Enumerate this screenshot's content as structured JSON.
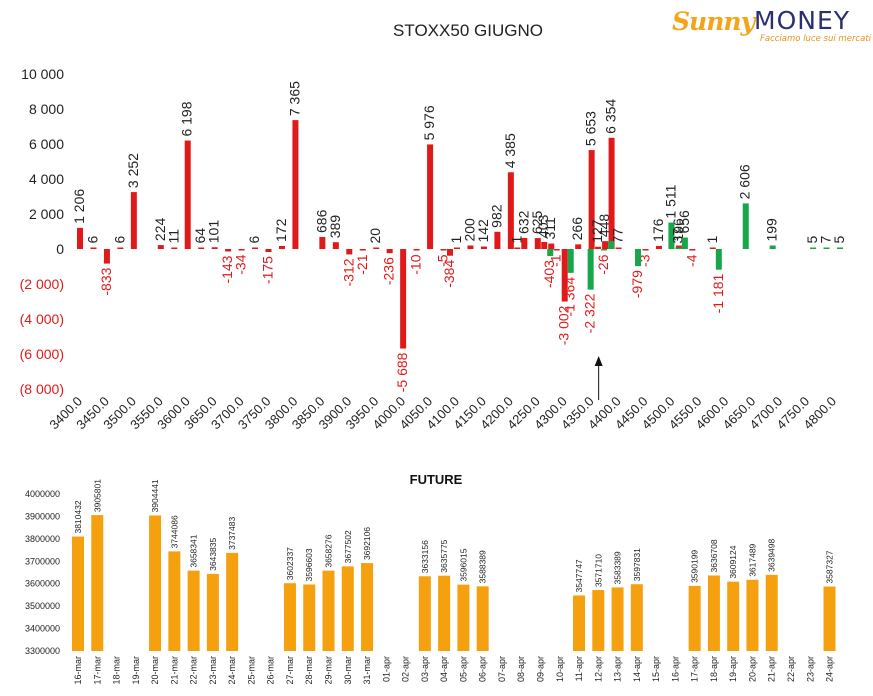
{
  "logo": {
    "sunny": "Sunny",
    "money": "MONEY",
    "tagline": "Facciamo luce sui mercati"
  },
  "chart_data": [
    {
      "type": "bar",
      "title": "STOXX50 GIUGNO",
      "ylim": [
        -8000,
        10000
      ],
      "yticks": [
        "10 000",
        "8 000",
        "6 000",
        "4 000",
        "2 000",
        "0",
        "(2 000)",
        "(4 000)",
        "(6 000)",
        "(8 000)"
      ],
      "categories": [
        "3400.0",
        "3450.0",
        "3500.0",
        "3550.0",
        "3600.0",
        "3650.0",
        "3700.0",
        "3750.0",
        "3800.0",
        "3850.0",
        "3900.0",
        "3950.0",
        "4000.0",
        "4050.0",
        "4100.0",
        "4150.0",
        "4200.0",
        "4250.0",
        "4300.0",
        "4350.0",
        "4400.0",
        "4450.0",
        "4500.0",
        "4550.0",
        "4600.0",
        "4650.0",
        "4700.0",
        "4750.0",
        "4800.0"
      ],
      "red_bars": [
        {
          "x": 3400,
          "value": 1206,
          "label": "1 206"
        },
        {
          "x": 3425,
          "value": 6,
          "label": "6"
        },
        {
          "x": 3450,
          "value": -833,
          "label": "-833"
        },
        {
          "x": 3475,
          "value": 6,
          "label": "6"
        },
        {
          "x": 3500,
          "value": 3252,
          "label": "3 252"
        },
        {
          "x": 3550,
          "value": 224,
          "label": "224"
        },
        {
          "x": 3575,
          "value": 11,
          "label": "11"
        },
        {
          "x": 3600,
          "value": 6198,
          "label": "6 198"
        },
        {
          "x": 3625,
          "value": 64,
          "label": "64"
        },
        {
          "x": 3650,
          "value": 101,
          "label": "101"
        },
        {
          "x": 3675,
          "value": -143,
          "label": "-143"
        },
        {
          "x": 3700,
          "value": -34,
          "label": "-34"
        },
        {
          "x": 3725,
          "value": 6,
          "label": "6"
        },
        {
          "x": 3750,
          "value": -175,
          "label": "-175"
        },
        {
          "x": 3775,
          "value": 172,
          "label": "172"
        },
        {
          "x": 3800,
          "value": 7365,
          "label": "7 365"
        },
        {
          "x": 3850,
          "value": 686,
          "label": "686"
        },
        {
          "x": 3875,
          "value": 389,
          "label": "389"
        },
        {
          "x": 3900,
          "value": -312,
          "label": "-312"
        },
        {
          "x": 3925,
          "value": -21,
          "label": "-21"
        },
        {
          "x": 3950,
          "value": 20,
          "label": "20"
        },
        {
          "x": 3975,
          "value": -236,
          "label": "-236"
        },
        {
          "x": 4000,
          "value": -5688,
          "label": "-5 688"
        },
        {
          "x": 4025,
          "value": -10,
          "label": "-10"
        },
        {
          "x": 4050,
          "value": 5976,
          "label": "5 976"
        },
        {
          "x": 4075,
          "value": -5,
          "label": "-5"
        },
        {
          "x": 4087,
          "value": -384,
          "label": "-384"
        },
        {
          "x": 4100,
          "value": 1,
          "label": "1"
        },
        {
          "x": 4125,
          "value": 200,
          "label": "200"
        },
        {
          "x": 4150,
          "value": 142,
          "label": "142"
        },
        {
          "x": 4175,
          "value": 982,
          "label": "982"
        },
        {
          "x": 4200,
          "value": 4385,
          "label": "4 385"
        },
        {
          "x": 4212,
          "value": 1,
          "label": "1"
        },
        {
          "x": 4225,
          "value": 632,
          "label": "632"
        },
        {
          "x": 4250,
          "value": 625,
          "label": "625"
        },
        {
          "x": 4262,
          "value": 403,
          "label": "403"
        },
        {
          "x": 4275,
          "value": 311,
          "label": "311"
        },
        {
          "x": 4285,
          "value": -1,
          "label": "-1"
        },
        {
          "x": 4300,
          "value": -3002,
          "label": "-3 002"
        },
        {
          "x": 4325,
          "value": 266,
          "label": "266"
        },
        {
          "x": 4350,
          "value": 5653,
          "label": "5 653"
        },
        {
          "x": 4362,
          "value": 127,
          "label": "127"
        },
        {
          "x": 4375,
          "value": 448,
          "label": "448"
        },
        {
          "x": 4387,
          "value": 6354,
          "label": "6 354"
        },
        {
          "x": 4400,
          "value": 77,
          "label": "77"
        },
        {
          "x": 4450,
          "value": -3,
          "label": "-3"
        },
        {
          "x": 4475,
          "value": 176,
          "label": "176"
        },
        {
          "x": 4512,
          "value": 196,
          "label": "196"
        },
        {
          "x": 4537,
          "value": -4,
          "label": "-4"
        },
        {
          "x": 4575,
          "value": 1,
          "label": "1"
        }
      ],
      "green_bars": [
        {
          "x": 4262,
          "value": -403,
          "label": "-403"
        },
        {
          "x": 4300,
          "value": -1364,
          "label": "-1 364"
        },
        {
          "x": 4337,
          "value": -2322,
          "label": "-2 322"
        },
        {
          "x": 4362,
          "value": -26,
          "label": "-26"
        },
        {
          "x": 4375,
          "value": 448,
          "label": ""
        },
        {
          "x": 4425,
          "value": -979,
          "label": "-979"
        },
        {
          "x": 4487,
          "value": 1511,
          "label": "1 511"
        },
        {
          "x": 4500,
          "value": 37,
          "label": "37"
        },
        {
          "x": 4512,
          "value": 656,
          "label": "656"
        },
        {
          "x": 4575,
          "value": -1181,
          "label": "-1 181"
        },
        {
          "x": 4625,
          "value": 2606,
          "label": "2 606"
        },
        {
          "x": 4675,
          "value": 199,
          "label": "199"
        },
        {
          "x": 4750,
          "value": 5,
          "label": "5"
        },
        {
          "x": 4775,
          "value": 7,
          "label": "7"
        },
        {
          "x": 4800,
          "value": 5,
          "label": "5"
        }
      ],
      "colors": {
        "red": "#e01a1a",
        "green": "#18a64a",
        "neg_text": "#e01a1a"
      },
      "annotation": {
        "type": "arrow",
        "x": 4350
      }
    },
    {
      "type": "bar",
      "title": "FUTURE",
      "ylim": [
        3300000,
        4000000
      ],
      "yticks": [
        "4000000",
        "3900000",
        "3800000",
        "3700000",
        "3600000",
        "3500000",
        "3400000",
        "3300000"
      ],
      "categories": [
        "16-mar",
        "17-mar",
        "18-mar",
        "19-mar",
        "20-mar",
        "21-mar",
        "22-mar",
        "23-mar",
        "24-mar",
        "25-mar",
        "26-mar",
        "27-mar",
        "28-mar",
        "29-mar",
        "30-mar",
        "31-mar",
        "01-apr",
        "02-apr",
        "03-apr",
        "04-apr",
        "05-apr",
        "06-apr",
        "07-apr",
        "08-apr",
        "09-apr",
        "10-apr",
        "11-apr",
        "12-apr",
        "13-apr",
        "14-apr",
        "15-apr",
        "16-apr",
        "17-apr",
        "18-apr",
        "19-apr",
        "20-apr",
        "21-apr",
        "22-apr",
        "23-apr",
        "24-apr"
      ],
      "values": [
        3810432,
        3905801,
        null,
        null,
        3904441,
        3744086,
        3658341,
        3643835,
        3737483,
        null,
        null,
        3602337,
        3596603,
        3658276,
        3677502,
        3692106,
        null,
        null,
        3633156,
        3635775,
        3596015,
        3588389,
        null,
        null,
        null,
        null,
        3547747,
        3571710,
        3583389,
        3597831,
        null,
        null,
        3590199,
        3636708,
        3609124,
        3617489,
        3639498,
        null,
        null,
        3587327
      ],
      "labels": [
        "3810432",
        "3905801",
        "",
        "",
        "3904441",
        "3744086",
        "3658341",
        "3643835",
        "3737483",
        "",
        "",
        "3602337",
        "3596603",
        "3658276",
        "3677502",
        "3692106",
        "",
        "",
        "3633156",
        "3635775",
        "3596015",
        "3588389",
        "",
        "",
        "",
        "",
        "3547747",
        "3571710",
        "3583389",
        "3597831",
        "",
        "",
        "3590199",
        "3636708",
        "3609124",
        "3617489",
        "3639498",
        "",
        "",
        "3587327"
      ],
      "colors": {
        "bar": "#f5a10f"
      }
    }
  ]
}
